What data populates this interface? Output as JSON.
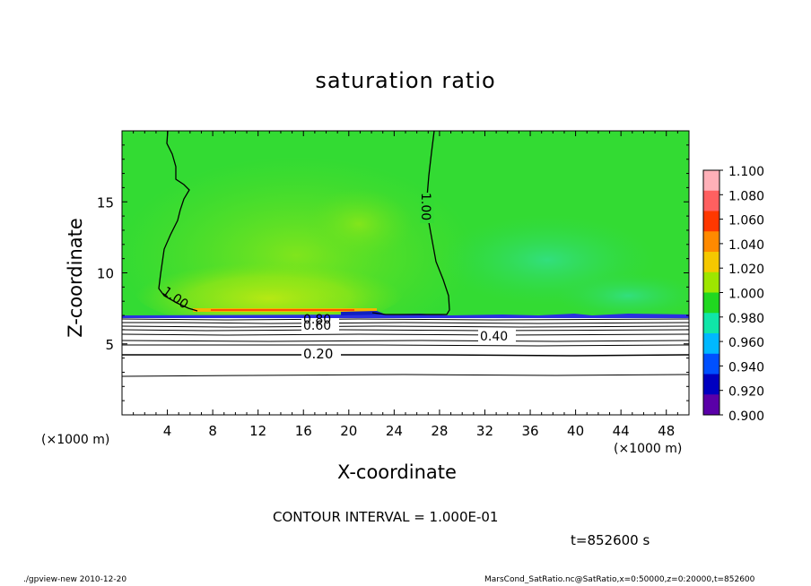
{
  "chart_data": {
    "type": "heatmap",
    "title": "saturation ratio",
    "xlabel": "X-coordinate",
    "ylabel": "Z-coordinate",
    "x_unit_label": "(×1000 m)",
    "xlim": [
      0,
      50
    ],
    "ylim": [
      0,
      20
    ],
    "x_ticks": [
      "4",
      "8",
      "12",
      "16",
      "20",
      "24",
      "28",
      "32",
      "36",
      "40",
      "44",
      "48"
    ],
    "y_ticks": [
      "5",
      "10",
      "15"
    ],
    "colorbar": {
      "levels": [
        "1.100",
        "1.080",
        "1.060",
        "1.040",
        "1.020",
        "1.000",
        "0.980",
        "0.960",
        "0.940",
        "0.920",
        "0.900"
      ],
      "colors": [
        "#ffb0b8",
        "#ff6060",
        "#ff3800",
        "#ff8a00",
        "#f5c800",
        "#9ee600",
        "#20d820",
        "#10e6a8",
        "#00b8ff",
        "#0050ff",
        "#0000c0",
        "#5a00a8"
      ]
    },
    "contour_labels": [
      "1.00",
      "1.00",
      "0.60",
      "0.80",
      "0.40",
      "0.20"
    ],
    "contour_interval": "CONTOUR INTERVAL = 1.000E-01",
    "time": "t=852600 s"
  },
  "footer": {
    "left": "./gpview-new  2010-12-20",
    "right": "MarsCond_SatRatio.nc@SatRatio,x=0:50000,z=0:20000,t=852600"
  }
}
